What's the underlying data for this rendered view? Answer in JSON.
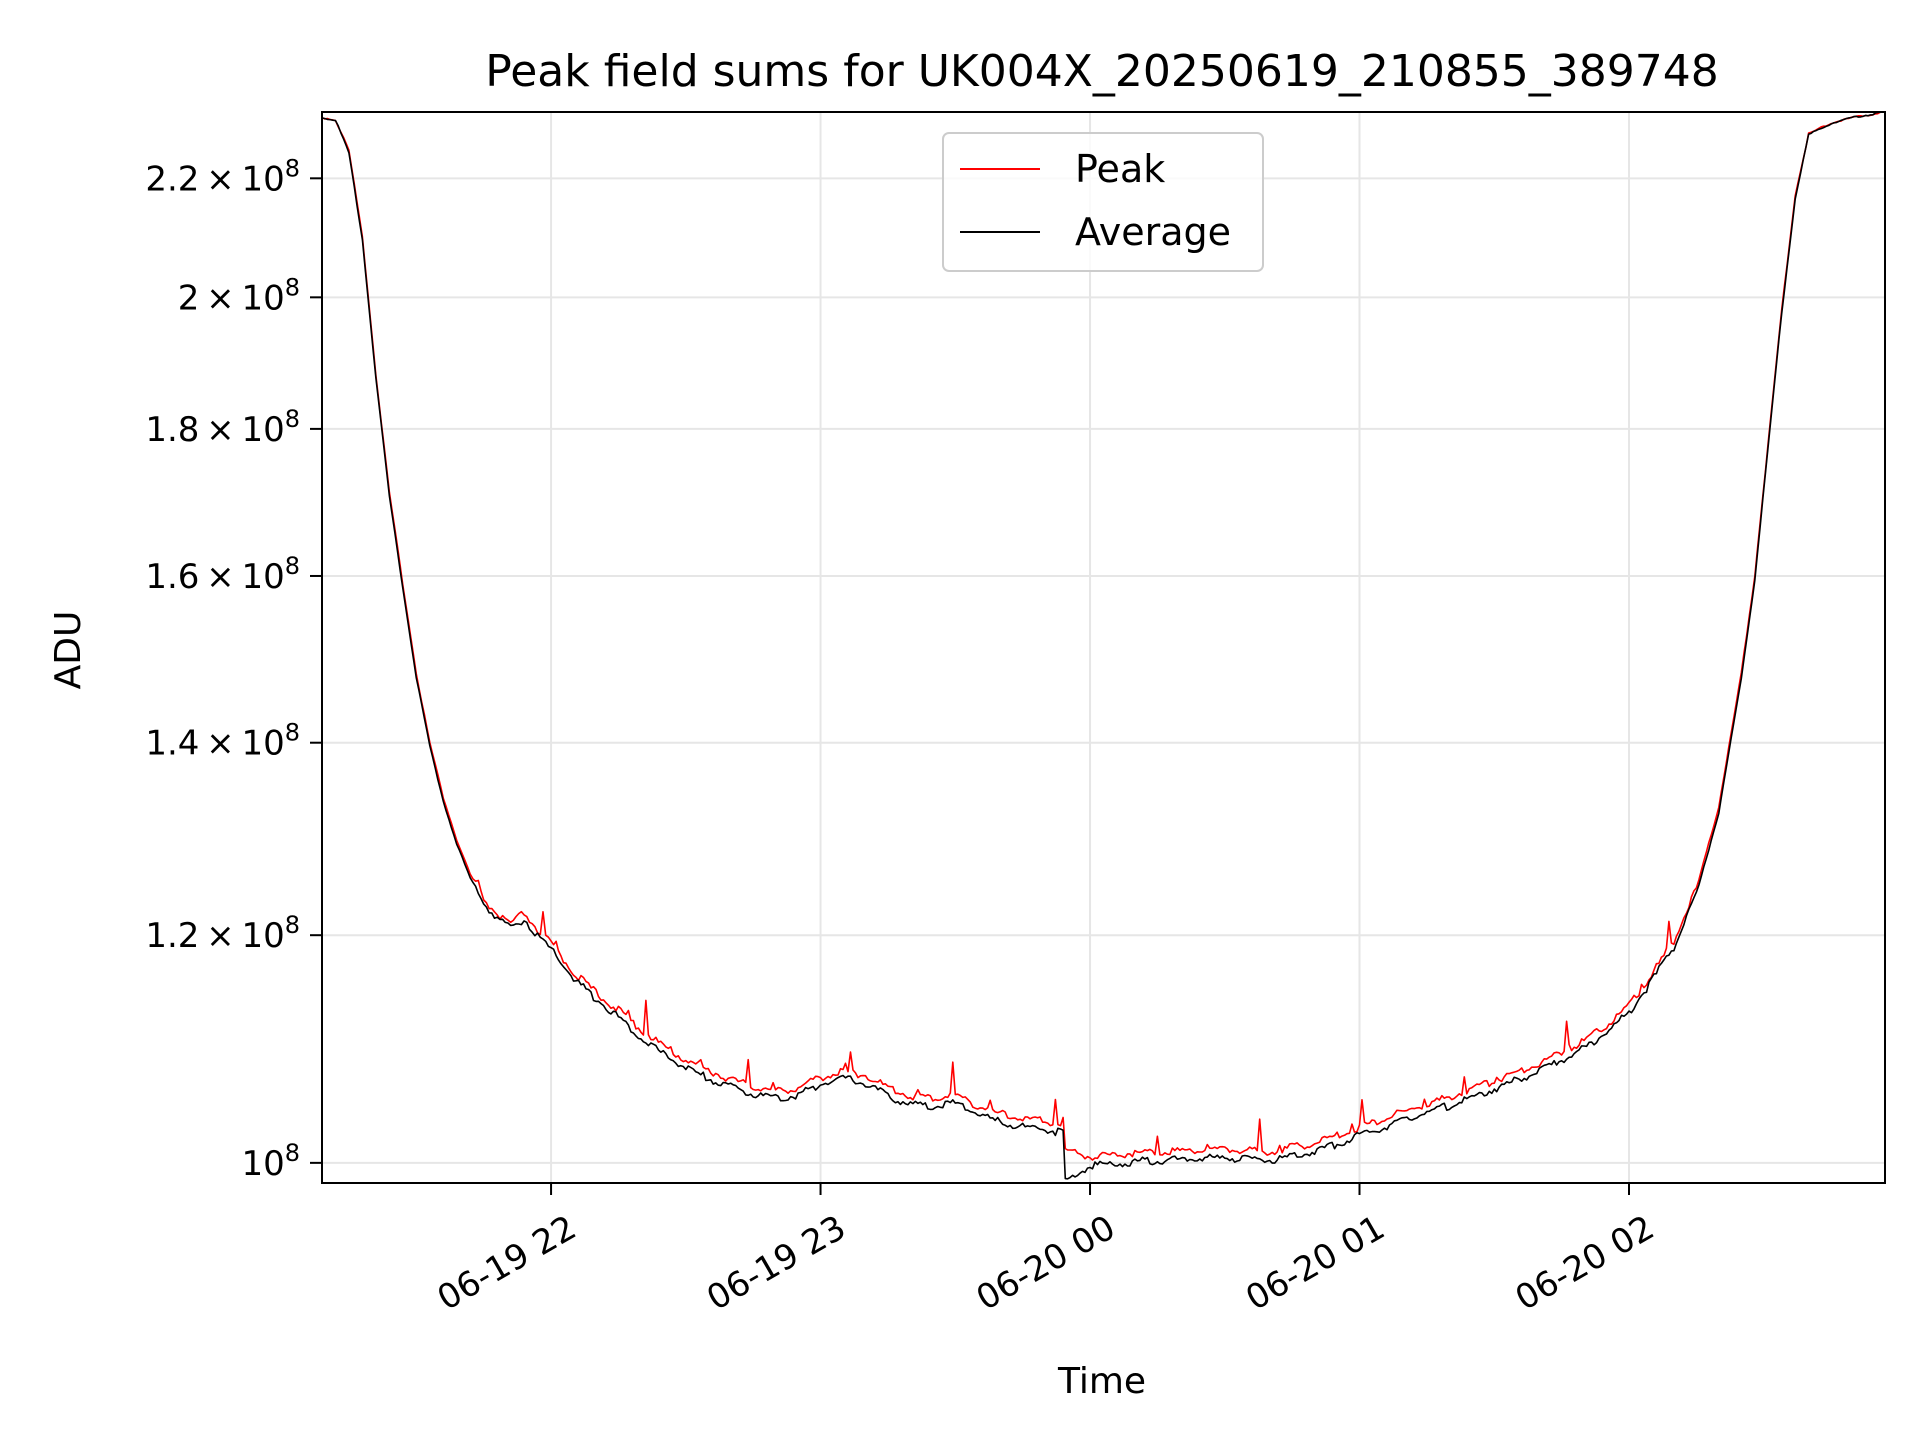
{
  "chart_data": {
    "type": "line",
    "title": "Peak field sums for UK004X_20250619_210855_389748",
    "xlabel": "Time",
    "ylabel": "ADU",
    "x_scale": "time",
    "y_scale": "log",
    "xlim": [
      "2025-06-19 21:09",
      "2025-06-20 02:57"
    ],
    "ylim": [
      98400000,
      232000000
    ],
    "x_ticks": [
      {
        "value": "2025-06-19 22:00",
        "label": "06-19 22"
      },
      {
        "value": "2025-06-19 23:00",
        "label": "06-19 23"
      },
      {
        "value": "2025-06-20 00:00",
        "label": "06-20 00"
      },
      {
        "value": "2025-06-20 01:00",
        "label": "06-20 01"
      },
      {
        "value": "2025-06-20 02:00",
        "label": "06-20 02"
      }
    ],
    "y_ticks": [
      {
        "value": 100000000,
        "mantissa": "",
        "exponent": "8"
      },
      {
        "value": 120000000,
        "mantissa": "1.2",
        "exponent": "8"
      },
      {
        "value": 140000000,
        "mantissa": "1.4",
        "exponent": "8"
      },
      {
        "value": 160000000,
        "mantissa": "1.6",
        "exponent": "8"
      },
      {
        "value": 180000000,
        "mantissa": "1.8",
        "exponent": "8"
      },
      {
        "value": 200000000,
        "mantissa": "2",
        "exponent": "8"
      },
      {
        "value": 220000000,
        "mantissa": "2.2",
        "exponent": "8"
      }
    ],
    "grid": true,
    "legend_position": "top-center",
    "series": [
      {
        "name": "Peak",
        "color": "#ff0000",
        "points": [
          [
            "2025-06-19 21:09",
            231000000
          ],
          [
            "2025-06-19 21:12",
            230500000
          ],
          [
            "2025-06-19 21:15",
            225000000
          ],
          [
            "2025-06-19 21:18",
            210000000
          ],
          [
            "2025-06-19 21:21",
            188000000
          ],
          [
            "2025-06-19 21:24",
            171000000
          ],
          [
            "2025-06-19 21:27",
            159000000
          ],
          [
            "2025-06-19 21:30",
            148000000
          ],
          [
            "2025-06-19 21:33",
            140000000
          ],
          [
            "2025-06-19 21:36",
            134000000
          ],
          [
            "2025-06-19 21:39",
            129500000
          ],
          [
            "2025-06-19 21:42",
            126000000
          ],
          [
            "2025-06-19 21:45",
            123500000
          ],
          [
            "2025-06-19 21:48",
            122000000
          ],
          [
            "2025-06-19 21:51",
            121000000
          ],
          [
            "2025-06-19 21:54",
            122200000
          ],
          [
            "2025-06-19 21:57",
            120500000
          ],
          [
            "2025-06-19 22:00",
            119200000
          ],
          [
            "2025-06-19 22:05",
            116500000
          ],
          [
            "2025-06-19 22:10",
            114600000
          ],
          [
            "2025-06-19 22:15",
            113000000
          ],
          [
            "2025-06-19 22:20",
            111300000
          ],
          [
            "2025-06-19 22:25",
            109800000
          ],
          [
            "2025-06-19 22:30",
            108600000
          ],
          [
            "2025-06-19 22:35",
            107700000
          ],
          [
            "2025-06-19 22:40",
            106900000
          ],
          [
            "2025-06-19 22:45",
            106300000
          ],
          [
            "2025-06-19 22:50",
            105900000
          ],
          [
            "2025-06-19 22:55",
            106200000
          ],
          [
            "2025-06-19 23:00",
            107100000
          ],
          [
            "2025-06-19 23:05",
            107600000
          ],
          [
            "2025-06-19 23:10",
            107300000
          ],
          [
            "2025-06-19 23:15",
            106200000
          ],
          [
            "2025-06-19 23:20",
            105500000
          ],
          [
            "2025-06-19 23:25",
            105300000
          ],
          [
            "2025-06-19 23:30",
            105600000
          ],
          [
            "2025-06-19 23:35",
            104700000
          ],
          [
            "2025-06-19 23:40",
            104000000
          ],
          [
            "2025-06-19 23:45",
            103600000
          ],
          [
            "2025-06-19 23:50",
            103400000
          ],
          [
            "2025-06-19 23:54",
            103100000
          ],
          [
            "2025-06-19 23:55",
            101000000
          ],
          [
            "2025-06-20 00:00",
            100500000
          ],
          [
            "2025-06-20 00:10",
            100800000
          ],
          [
            "2025-06-20 00:20",
            101000000
          ],
          [
            "2025-06-20 00:30",
            101100000
          ],
          [
            "2025-06-20 00:40",
            100900000
          ],
          [
            "2025-06-20 00:50",
            101600000
          ],
          [
            "2025-06-20 00:55",
            102200000
          ],
          [
            "2025-06-20 01:00",
            102900000
          ],
          [
            "2025-06-20 01:10",
            104200000
          ],
          [
            "2025-06-20 01:20",
            105400000
          ],
          [
            "2025-06-20 01:30",
            106800000
          ],
          [
            "2025-06-20 01:40",
            108300000
          ],
          [
            "2025-06-20 01:50",
            110300000
          ],
          [
            "2025-06-20 01:55",
            111700000
          ],
          [
            "2025-06-20 02:00",
            113400000
          ],
          [
            "2025-06-20 02:05",
            116200000
          ],
          [
            "2025-06-20 02:10",
            119500000
          ],
          [
            "2025-06-20 02:15",
            124500000
          ],
          [
            "2025-06-20 02:20",
            133000000
          ],
          [
            "2025-06-20 02:25",
            148000000
          ],
          [
            "2025-06-20 02:28",
            160000000
          ],
          [
            "2025-06-20 02:31",
            178000000
          ],
          [
            "2025-06-20 02:34",
            198000000
          ],
          [
            "2025-06-20 02:37",
            217000000
          ],
          [
            "2025-06-20 02:40",
            228000000
          ],
          [
            "2025-06-20 02:45",
            230000000
          ],
          [
            "2025-06-20 02:50",
            231000000
          ],
          [
            "2025-06-20 02:57",
            232000000
          ]
        ]
      },
      {
        "name": "Average",
        "color": "#000000",
        "points": [
          [
            "2025-06-19 21:09",
            231000000
          ],
          [
            "2025-06-19 21:12",
            230500000
          ],
          [
            "2025-06-19 21:15",
            224500000
          ],
          [
            "2025-06-19 21:18",
            209500000
          ],
          [
            "2025-06-19 21:21",
            187500000
          ],
          [
            "2025-06-19 21:24",
            170500000
          ],
          [
            "2025-06-19 21:27",
            158500000
          ],
          [
            "2025-06-19 21:30",
            147500000
          ],
          [
            "2025-06-19 21:33",
            139600000
          ],
          [
            "2025-06-19 21:36",
            133600000
          ],
          [
            "2025-06-19 21:39",
            129100000
          ],
          [
            "2025-06-19 21:42",
            125600000
          ],
          [
            "2025-06-19 21:45",
            123100000
          ],
          [
            "2025-06-19 21:48",
            121600000
          ],
          [
            "2025-06-19 21:51",
            120600000
          ],
          [
            "2025-06-19 21:54",
            121600000
          ],
          [
            "2025-06-19 21:57",
            119900000
          ],
          [
            "2025-06-19 22:00",
            118600000
          ],
          [
            "2025-06-19 22:05",
            115900000
          ],
          [
            "2025-06-19 22:10",
            114000000
          ],
          [
            "2025-06-19 22:15",
            112400000
          ],
          [
            "2025-06-19 22:20",
            110600000
          ],
          [
            "2025-06-19 22:25",
            109100000
          ],
          [
            "2025-06-19 22:30",
            107900000
          ],
          [
            "2025-06-19 22:35",
            107000000
          ],
          [
            "2025-06-19 22:40",
            106300000
          ],
          [
            "2025-06-19 22:45",
            105700000
          ],
          [
            "2025-06-19 22:50",
            105300000
          ],
          [
            "2025-06-19 22:55",
            105600000
          ],
          [
            "2025-06-19 23:00",
            106500000
          ],
          [
            "2025-06-19 23:05",
            107000000
          ],
          [
            "2025-06-19 23:10",
            106600000
          ],
          [
            "2025-06-19 23:15",
            105500000
          ],
          [
            "2025-06-19 23:20",
            104800000
          ],
          [
            "2025-06-19 23:25",
            104600000
          ],
          [
            "2025-06-19 23:30",
            104900000
          ],
          [
            "2025-06-19 23:35",
            104000000
          ],
          [
            "2025-06-19 23:40",
            103300000
          ],
          [
            "2025-06-19 23:45",
            102900000
          ],
          [
            "2025-06-19 23:50",
            102700000
          ],
          [
            "2025-06-19 23:54",
            102400000
          ],
          [
            "2025-06-19 23:55",
            98700000
          ],
          [
            "2025-06-20 00:00",
            99800000
          ],
          [
            "2025-06-20 00:10",
            100100000
          ],
          [
            "2025-06-20 00:20",
            100300000
          ],
          [
            "2025-06-20 00:30",
            100400000
          ],
          [
            "2025-06-20 00:40",
            100200000
          ],
          [
            "2025-06-20 00:50",
            100900000
          ],
          [
            "2025-06-20 00:55",
            101500000
          ],
          [
            "2025-06-20 01:00",
            102200000
          ],
          [
            "2025-06-20 01:10",
            103500000
          ],
          [
            "2025-06-20 01:20",
            104700000
          ],
          [
            "2025-06-20 01:30",
            106100000
          ],
          [
            "2025-06-20 01:40",
            107600000
          ],
          [
            "2025-06-20 01:50",
            109600000
          ],
          [
            "2025-06-20 01:55",
            111000000
          ],
          [
            "2025-06-20 02:00",
            112800000
          ],
          [
            "2025-06-20 02:05",
            115600000
          ],
          [
            "2025-06-20 02:10",
            118900000
          ],
          [
            "2025-06-20 02:15",
            123900000
          ],
          [
            "2025-06-20 02:20",
            132400000
          ],
          [
            "2025-06-20 02:25",
            147400000
          ],
          [
            "2025-06-20 02:28",
            159500000
          ],
          [
            "2025-06-20 02:31",
            177500000
          ],
          [
            "2025-06-20 02:34",
            197500000
          ],
          [
            "2025-06-20 02:37",
            216500000
          ],
          [
            "2025-06-20 02:40",
            227800000
          ],
          [
            "2025-06-20 02:45",
            229900000
          ],
          [
            "2025-06-20 02:50",
            231000000
          ],
          [
            "2025-06-20 02:57",
            232000000
          ]
        ]
      }
    ]
  }
}
